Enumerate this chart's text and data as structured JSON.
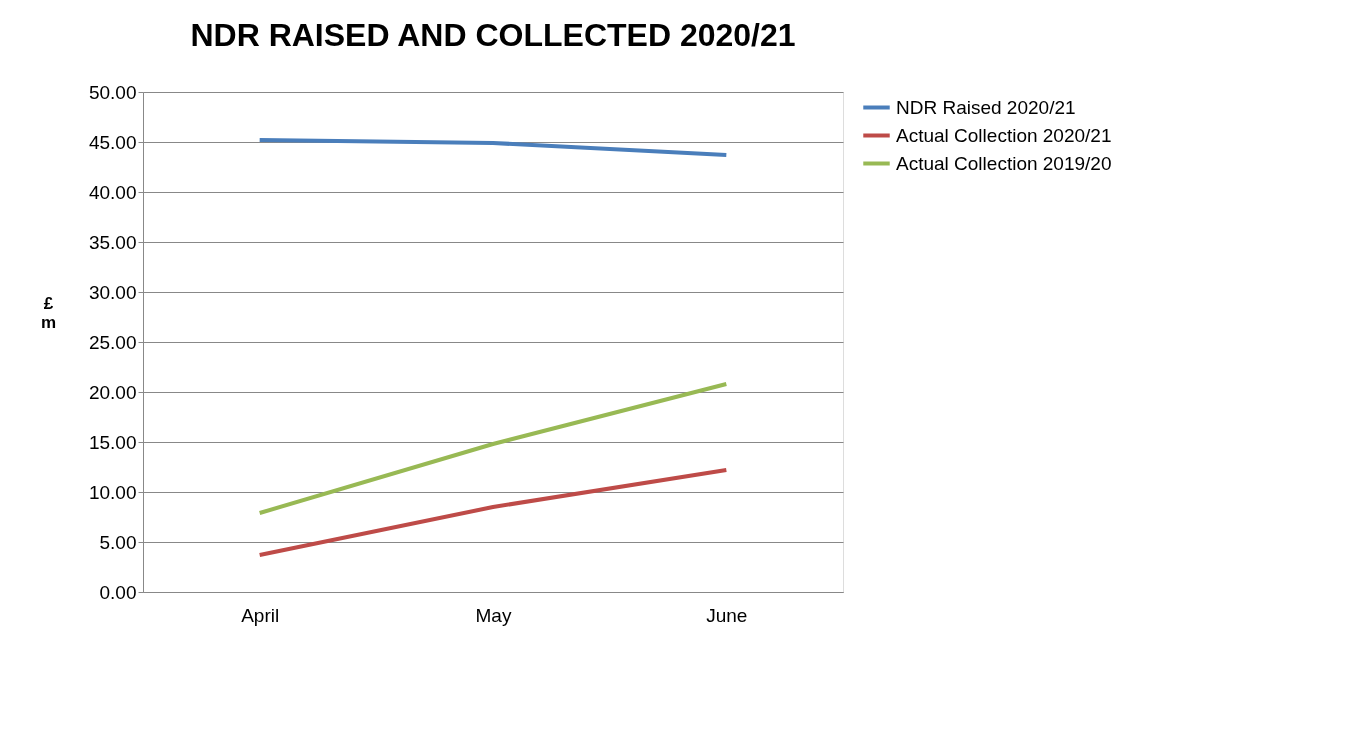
{
  "chart_data": {
    "type": "line",
    "title": "NDR RAISED AND COLLECTED 2020/21",
    "ylabel": "£ m",
    "categories": [
      "April",
      "May",
      "June"
    ],
    "series": [
      {
        "name": "NDR Raised 2020/21",
        "color": "#4a7ebb",
        "values": [
          45.2,
          44.9,
          43.7
        ]
      },
      {
        "name": "Actual Collection 2020/21",
        "color": "#be4b48",
        "values": [
          3.7,
          8.5,
          12.2
        ]
      },
      {
        "name": "Actual Collection 2019/20",
        "color": "#98b954",
        "values": [
          7.9,
          14.8,
          20.8
        ]
      }
    ],
    "ylim": [
      0,
      50
    ],
    "yticks": [
      {
        "value": 0,
        "label": "0.00"
      },
      {
        "value": 5,
        "label": "5.00"
      },
      {
        "value": 10,
        "label": "10.00"
      },
      {
        "value": 15,
        "label": "15.00"
      },
      {
        "value": 20,
        "label": "20.00"
      },
      {
        "value": 25,
        "label": "25.00"
      },
      {
        "value": 30,
        "label": "30.00"
      },
      {
        "value": 35,
        "label": "35.00"
      },
      {
        "value": 40,
        "label": "40.00"
      },
      {
        "value": 45,
        "label": "45.00"
      },
      {
        "value": 50,
        "label": "50.00"
      }
    ],
    "grid": "y",
    "legend": "right",
    "marker": "none",
    "line_style": "solid"
  }
}
